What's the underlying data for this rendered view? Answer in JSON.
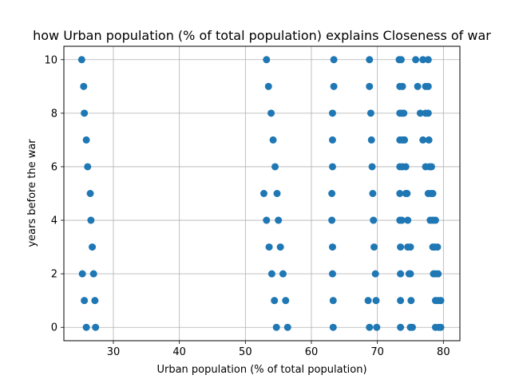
{
  "chart_data": {
    "type": "scatter",
    "title": "how Urban population (% of total population) explains Closeness of war",
    "xlabel": "Urban population (% of total population)",
    "ylabel": "years before the war",
    "xlim": [
      22.5,
      82.5
    ],
    "ylim": [
      -0.5,
      10.5
    ],
    "xticks": [
      30,
      40,
      50,
      60,
      70,
      80
    ],
    "yticks": [
      0,
      2,
      4,
      6,
      8,
      10
    ],
    "grid": true,
    "marker_color": "#1f77b4",
    "points": [
      [
        25.2,
        10
      ],
      [
        25.5,
        9
      ],
      [
        25.6,
        8
      ],
      [
        25.9,
        7
      ],
      [
        26.1,
        6
      ],
      [
        26.5,
        5
      ],
      [
        26.6,
        4
      ],
      [
        26.8,
        3
      ],
      [
        25.3,
        2
      ],
      [
        27.0,
        2
      ],
      [
        25.6,
        1
      ],
      [
        27.2,
        1
      ],
      [
        25.9,
        0
      ],
      [
        27.3,
        0
      ],
      [
        53.2,
        10
      ],
      [
        53.5,
        9
      ],
      [
        53.9,
        8
      ],
      [
        54.2,
        7
      ],
      [
        54.5,
        6
      ],
      [
        52.8,
        5
      ],
      [
        54.8,
        5
      ],
      [
        53.2,
        4
      ],
      [
        55.0,
        4
      ],
      [
        53.6,
        3
      ],
      [
        55.3,
        3
      ],
      [
        54.0,
        2
      ],
      [
        55.7,
        2
      ],
      [
        54.4,
        1
      ],
      [
        56.1,
        1
      ],
      [
        54.7,
        0
      ],
      [
        56.4,
        0
      ],
      [
        63.4,
        10
      ],
      [
        63.4,
        9
      ],
      [
        63.2,
        8
      ],
      [
        63.2,
        7
      ],
      [
        63.2,
        6
      ],
      [
        63.1,
        5
      ],
      [
        63.1,
        4
      ],
      [
        63.2,
        3
      ],
      [
        63.2,
        2
      ],
      [
        63.3,
        1
      ],
      [
        63.3,
        0
      ],
      [
        68.8,
        10
      ],
      [
        68.8,
        9
      ],
      [
        69.0,
        8
      ],
      [
        69.1,
        7
      ],
      [
        69.2,
        6
      ],
      [
        69.3,
        5
      ],
      [
        69.4,
        4
      ],
      [
        69.5,
        3
      ],
      [
        69.7,
        2
      ],
      [
        68.6,
        1
      ],
      [
        69.8,
        1
      ],
      [
        68.8,
        0
      ],
      [
        69.9,
        0
      ],
      [
        73.3,
        10
      ],
      [
        73.6,
        10
      ],
      [
        75.8,
        10
      ],
      [
        76.9,
        10
      ],
      [
        77.7,
        10
      ],
      [
        73.4,
        9
      ],
      [
        73.8,
        9
      ],
      [
        76.1,
        9
      ],
      [
        77.3,
        9
      ],
      [
        77.7,
        9
      ],
      [
        73.4,
        8
      ],
      [
        73.7,
        8
      ],
      [
        74.0,
        8
      ],
      [
        76.5,
        8
      ],
      [
        77.3,
        8
      ],
      [
        77.7,
        8
      ],
      [
        73.4,
        7
      ],
      [
        73.8,
        7
      ],
      [
        74.1,
        7
      ],
      [
        76.9,
        7
      ],
      [
        77.8,
        7
      ],
      [
        73.4,
        6
      ],
      [
        73.8,
        6
      ],
      [
        74.3,
        6
      ],
      [
        77.3,
        6
      ],
      [
        77.9,
        6
      ],
      [
        78.2,
        6
      ],
      [
        73.4,
        5
      ],
      [
        74.3,
        5
      ],
      [
        74.5,
        5
      ],
      [
        77.7,
        5
      ],
      [
        78.1,
        5
      ],
      [
        78.4,
        5
      ],
      [
        73.4,
        4
      ],
      [
        73.7,
        4
      ],
      [
        74.6,
        4
      ],
      [
        78.0,
        4
      ],
      [
        78.4,
        4
      ],
      [
        78.8,
        4
      ],
      [
        73.5,
        3
      ],
      [
        74.6,
        3
      ],
      [
        75.0,
        3
      ],
      [
        78.4,
        3
      ],
      [
        78.7,
        3
      ],
      [
        79.1,
        3
      ],
      [
        73.5,
        2
      ],
      [
        74.8,
        2
      ],
      [
        75.0,
        2
      ],
      [
        78.5,
        2
      ],
      [
        78.8,
        2
      ],
      [
        79.2,
        2
      ],
      [
        73.5,
        1
      ],
      [
        75.1,
        1
      ],
      [
        78.8,
        1
      ],
      [
        79.2,
        1
      ],
      [
        79.6,
        1
      ],
      [
        73.5,
        0
      ],
      [
        75.0,
        0
      ],
      [
        75.3,
        0
      ],
      [
        78.8,
        0
      ],
      [
        79.3,
        0
      ],
      [
        79.6,
        0
      ]
    ]
  }
}
